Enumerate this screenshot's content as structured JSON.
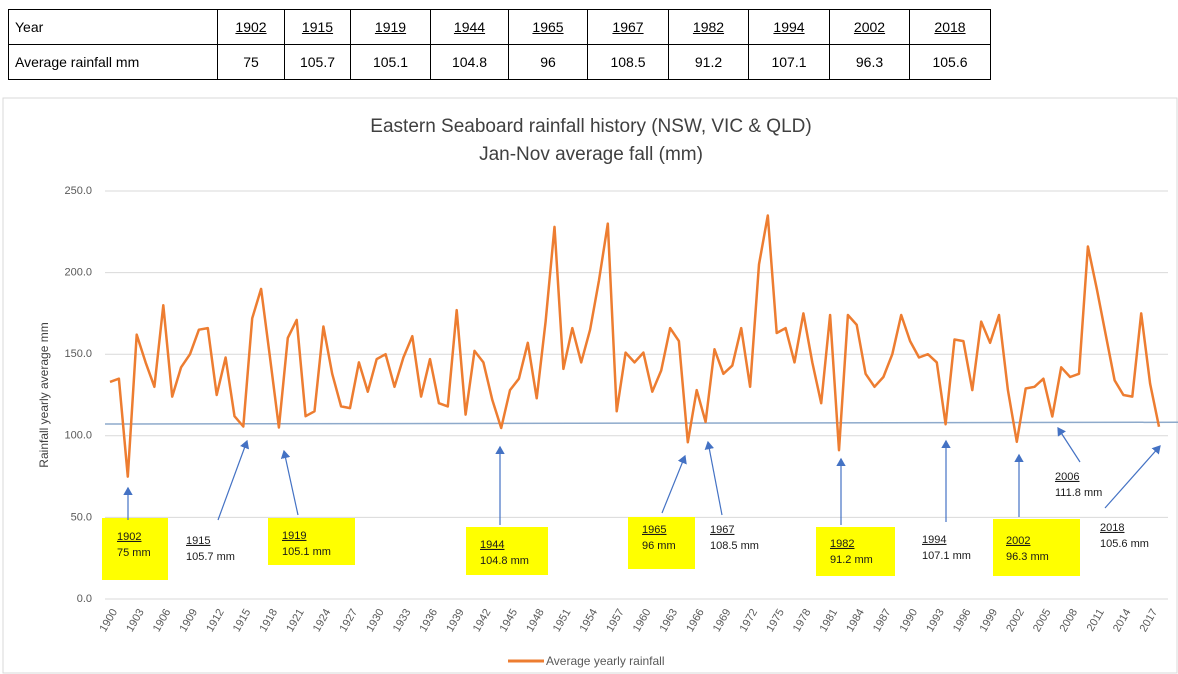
{
  "table": {
    "rows": [
      [
        "Year",
        "1902",
        "1915",
        "1919",
        "1944",
        "1965",
        "1967",
        "1982",
        "1994",
        "2002",
        "2018"
      ],
      [
        "Average rainfall mm",
        "75",
        "105.7",
        "105.1",
        "104.8",
        "96",
        "108.5",
        "91.2",
        "107.1",
        "96.3",
        "105.6"
      ]
    ]
  },
  "chart_data": {
    "type": "line",
    "title": "Eastern Seaboard rainfall history (NSW, VIC & QLD)",
    "subtitle": "Jan-Nov average fall (mm)",
    "y_label": "Rainfall yearly average mm",
    "x": [
      1900,
      1901,
      1902,
      1903,
      1904,
      1905,
      1906,
      1907,
      1908,
      1909,
      1910,
      1911,
      1912,
      1913,
      1914,
      1915,
      1916,
      1917,
      1918,
      1919,
      1920,
      1921,
      1922,
      1923,
      1924,
      1925,
      1926,
      1927,
      1928,
      1929,
      1930,
      1931,
      1932,
      1933,
      1934,
      1935,
      1936,
      1937,
      1938,
      1939,
      1940,
      1941,
      1942,
      1943,
      1944,
      1945,
      1946,
      1947,
      1948,
      1949,
      1950,
      1951,
      1952,
      1953,
      1954,
      1955,
      1956,
      1957,
      1958,
      1959,
      1960,
      1961,
      1962,
      1963,
      1964,
      1965,
      1966,
      1967,
      1968,
      1969,
      1970,
      1971,
      1972,
      1973,
      1974,
      1975,
      1976,
      1977,
      1978,
      1979,
      1980,
      1981,
      1982,
      1983,
      1984,
      1985,
      1986,
      1987,
      1988,
      1989,
      1990,
      1991,
      1992,
      1993,
      1994,
      1995,
      1996,
      1997,
      1998,
      1999,
      2000,
      2001,
      2002,
      2003,
      2004,
      2005,
      2006,
      2007,
      2008,
      2009,
      2010,
      2011,
      2012,
      2013,
      2014,
      2015,
      2016,
      2017,
      2018
    ],
    "series": [
      {
        "name": "Average yearly rainfall",
        "color": "#ed7d31",
        "values": [
          133,
          135,
          75,
          162,
          145,
          130,
          180,
          124,
          142,
          150,
          165,
          166,
          125,
          148,
          112,
          105.7,
          172,
          190,
          148,
          105.1,
          160,
          171,
          112,
          115,
          167,
          138,
          118,
          117,
          145,
          127,
          147,
          150,
          130,
          148,
          161,
          124,
          147,
          120,
          118,
          177,
          113,
          152,
          145,
          122,
          104.8,
          128,
          135,
          157,
          123,
          170,
          228,
          141,
          166,
          145,
          165,
          195,
          230,
          115,
          151,
          145,
          151,
          127,
          140,
          166,
          158,
          96,
          128,
          108.5,
          153,
          138,
          143,
          166,
          130,
          205,
          235,
          163,
          166,
          145,
          175,
          145,
          120,
          174,
          91.2,
          174,
          168,
          138,
          130,
          136,
          150,
          174,
          158,
          148,
          150,
          145,
          107.1,
          159,
          158,
          128,
          170,
          157,
          174,
          128,
          96.3,
          129,
          130,
          135,
          111.8,
          142,
          136,
          138,
          216,
          190,
          162,
          134,
          125,
          124,
          175,
          132,
          105.6
        ]
      }
    ],
    "trend_line": {
      "color": "#8eaacb",
      "values": [
        107.2,
        108.3
      ]
    },
    "xlim": [
      1900,
      2018
    ],
    "xticks": [
      1900,
      1903,
      1906,
      1909,
      1912,
      1915,
      1918,
      1921,
      1924,
      1927,
      1930,
      1933,
      1936,
      1939,
      1942,
      1945,
      1948,
      1951,
      1954,
      1957,
      1960,
      1963,
      1966,
      1969,
      1972,
      1975,
      1978,
      1981,
      1984,
      1987,
      1990,
      1993,
      1996,
      1999,
      2002,
      2005,
      2008,
      2011,
      2014,
      2017
    ],
    "ylim": [
      0,
      250
    ],
    "yticks": [
      {
        "value": 0,
        "label": "0.0"
      },
      {
        "value": 50,
        "label": "50.0"
      },
      {
        "value": 100,
        "label": "100.0"
      },
      {
        "value": 150,
        "label": "150.0"
      },
      {
        "value": 200,
        "label": "200.0"
      },
      {
        "value": 250,
        "label": "250.0"
      }
    ],
    "grid": true,
    "legend": "bottom",
    "annotations": [
      {
        "year": "1902",
        "text": "75 mm",
        "highlight": true
      },
      {
        "year": "1915",
        "text": "105.7 mm",
        "highlight": false
      },
      {
        "year": "1919",
        "text": "105.1 mm",
        "highlight": true
      },
      {
        "year": "1944",
        "text": "104.8 mm",
        "highlight": true
      },
      {
        "year": "1965",
        "text": "96 mm",
        "highlight": true
      },
      {
        "year": "1967",
        "text": "108.5 mm",
        "highlight": false
      },
      {
        "year": "1982",
        "text": "91.2 mm",
        "highlight": true
      },
      {
        "year": "1994",
        "text": "107.1 mm",
        "highlight": false
      },
      {
        "year": "2002",
        "text": "96.3 mm",
        "highlight": true
      },
      {
        "year": "2006",
        "text": "111.8 mm",
        "highlight": false
      },
      {
        "year": "2018",
        "text": "105.6 mm",
        "highlight": false
      }
    ]
  }
}
